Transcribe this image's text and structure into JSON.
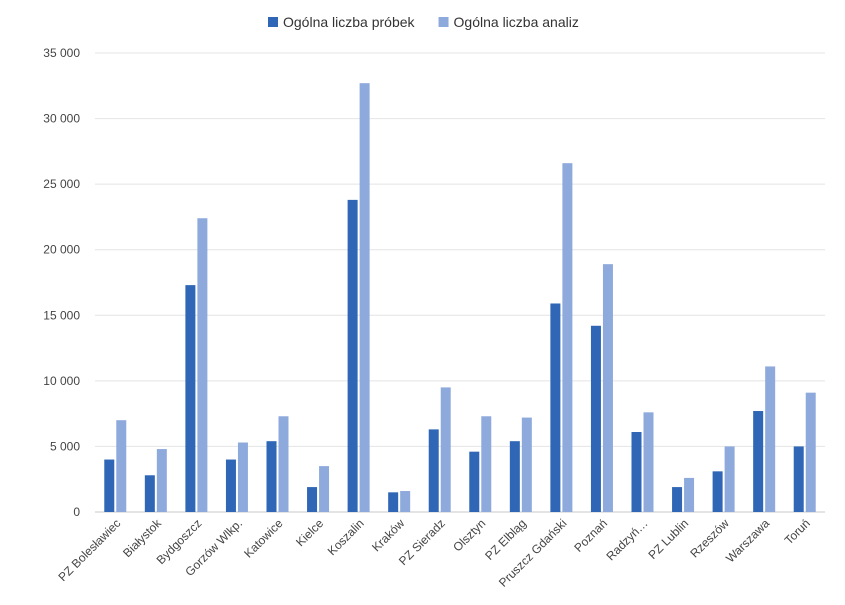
{
  "chart_data": {
    "type": "bar",
    "title": "",
    "xlabel": "",
    "ylabel": "",
    "ylim": [
      0,
      35000
    ],
    "yticks": [
      0,
      5000,
      10000,
      15000,
      20000,
      25000,
      30000,
      35000
    ],
    "ytick_labels": [
      "0",
      "5 000",
      "10 000",
      "15 000",
      "20 000",
      "25 000",
      "30 000",
      "35 000"
    ],
    "grid": true,
    "legend_position": "top",
    "categories": [
      "PZ Bolesławiec",
      "Białystok",
      "Bydgoszcz",
      "Gorzów Wlkp.",
      "Katowice",
      "Kielce",
      "Koszalin",
      "Kraków",
      "PZ Sieradz",
      "Olsztyn",
      "PZ Elbląg",
      "Pruszcz Gdański",
      "Poznań",
      "Radzyń…",
      "PZ Lublin",
      "Rzeszów",
      "Warszawa",
      "Toruń"
    ],
    "series": [
      {
        "name": "Ogólna liczba próbek",
        "color": "#2f66b5",
        "values": [
          4000,
          2800,
          17300,
          4000,
          5400,
          1900,
          23800,
          1500,
          6300,
          4600,
          5400,
          15900,
          14200,
          6100,
          1900,
          3100,
          7700,
          5000
        ]
      },
      {
        "name": "Ogólna liczba analiz",
        "color": "#8eaadc",
        "values": [
          7000,
          4800,
          22400,
          5300,
          7300,
          3500,
          32700,
          1600,
          9500,
          7300,
          7200,
          26600,
          18900,
          7600,
          2600,
          5000,
          11100,
          9100
        ]
      }
    ]
  }
}
